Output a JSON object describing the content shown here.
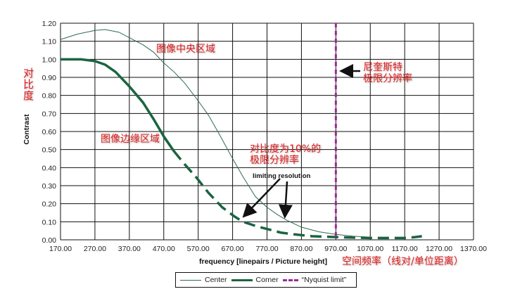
{
  "chart_data": {
    "type": "line",
    "xlabel": "frequency [linepairs / Picture height]",
    "ylabel": "Contrast",
    "xlim": [
      170,
      1370
    ],
    "ylim": [
      0,
      1.2
    ],
    "x_ticks": [
      "170.00",
      "270.00",
      "370.00",
      "470.00",
      "570.00",
      "670.00",
      "770.00",
      "870.00",
      "970.00",
      "1070.00",
      "1170.00",
      "1270.00",
      "1370.00"
    ],
    "y_ticks": [
      "0.00",
      "0.10",
      "0.20",
      "0.30",
      "0.40",
      "0.50",
      "0.60",
      "0.70",
      "0.80",
      "0.90",
      "1.00",
      "1.10",
      "1.20"
    ],
    "grid": true,
    "legend_position": "bottom",
    "series": [
      {
        "name": "Center",
        "color": "#2e6b50",
        "style": "thin-solid",
        "x": [
          170,
          220,
          270,
          300,
          340,
          370,
          410,
          440,
          470,
          500,
          530,
          570,
          600,
          630,
          670,
          700,
          736,
          770,
          800,
          826,
          870,
          920,
          970,
          1020,
          1070
        ],
        "y": [
          1.11,
          1.14,
          1.16,
          1.165,
          1.15,
          1.12,
          1.08,
          1.04,
          0.98,
          0.93,
          0.87,
          0.77,
          0.69,
          0.59,
          0.45,
          0.35,
          0.24,
          0.18,
          0.14,
          0.11,
          0.07,
          0.045,
          0.03,
          0.02,
          0.015
        ]
      },
      {
        "name": "Corner",
        "color": "#1a6441",
        "style": "thick-solid-then-dashed",
        "x": [
          170,
          200,
          230,
          270,
          300,
          330,
          370,
          410,
          440,
          471,
          500,
          530,
          567,
          600,
          640,
          675,
          700,
          740,
          770,
          810,
          850,
          900,
          970,
          1020,
          1070,
          1120,
          1170,
          1200,
          1220
        ],
        "y": [
          1.0,
          1.0,
          1.0,
          0.99,
          0.97,
          0.93,
          0.85,
          0.76,
          0.67,
          0.57,
          0.49,
          0.42,
          0.34,
          0.26,
          0.18,
          0.13,
          0.1,
          0.075,
          0.06,
          0.04,
          0.03,
          0.02,
          0.015,
          0.012,
          0.01,
          0.01,
          0.01,
          0.015,
          0.02
        ],
        "dashed_from_x": 500
      },
      {
        "name": "“Nyquist limit”",
        "color": "#9b2a96",
        "style": "dashed-vertical",
        "x": 970
      }
    ]
  },
  "annotations": {
    "center_region": "图像中央区域",
    "edge_region": "图像边缘区域",
    "contrast_cn": "对比度",
    "limit10_line1": "对比度为10%的",
    "limit10_line2": "极限分辨率",
    "limiting_resolution": "limiting resolution",
    "nyquist_line1": "尼奎斯特",
    "nyquist_line2": "极限分辨率",
    "xlabel_cn": "空间频率（线对/单位距离）"
  }
}
